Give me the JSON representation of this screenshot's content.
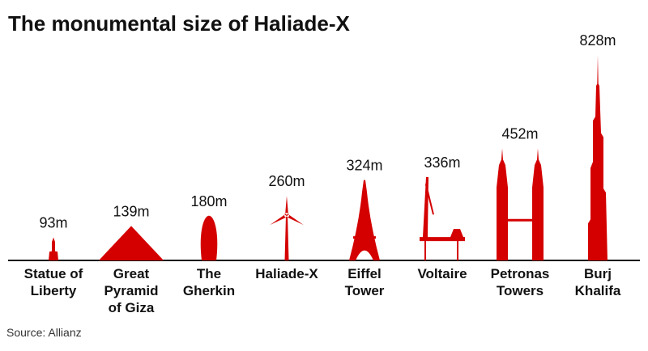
{
  "chart_data": {
    "type": "pictogram",
    "title": "The monumental size of Haliade-X",
    "categories": [
      "Statue of Liberty",
      "Great Pyramid of Giza",
      "The Gherkin",
      "Haliade-X",
      "Eiffel Tower",
      "Voltaire",
      "Petronas Towers",
      "Burj Khalifa"
    ],
    "values": [
      93,
      139,
      180,
      260,
      324,
      336,
      452,
      828
    ],
    "value_labels": [
      "93m",
      "139m",
      "180m",
      "260m",
      "324m",
      "336m",
      "452m",
      "828m"
    ],
    "color": "#d40000",
    "source": "Source: Allianz"
  }
}
